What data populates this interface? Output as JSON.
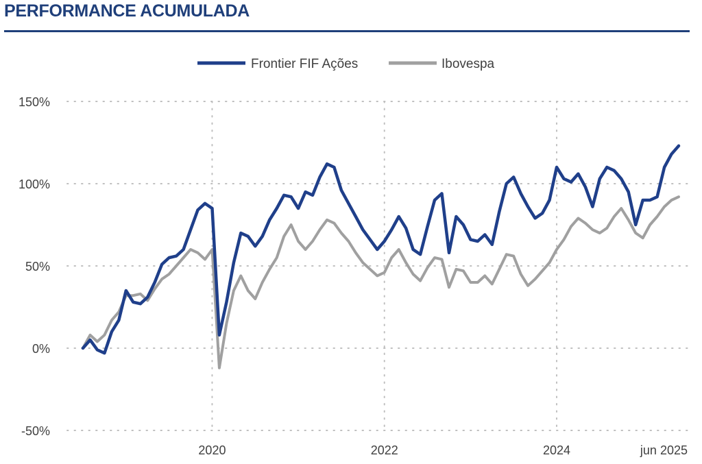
{
  "header": {
    "title": "PERFORMANCE ACUMULADA"
  },
  "colors": {
    "title": "#1f3f7a",
    "frontier": "#1f3f8a",
    "ibovespa": "#a0a0a0",
    "grid": "#bfbfbf"
  },
  "chart_data": {
    "type": "line",
    "title": "",
    "xlabel": "",
    "ylabel": "",
    "x_range": [
      "2018-07",
      "2025-06"
    ],
    "ylim": [
      -50,
      150
    ],
    "y_ticks": [
      150,
      100,
      50,
      0,
      -50
    ],
    "y_tick_labels": [
      "150%",
      "100%",
      "50%",
      "0%",
      "-50%"
    ],
    "x_ticks": [
      "2020-01",
      "2022-01",
      "2024-01",
      "2025-06"
    ],
    "x_tick_labels": [
      "2020",
      "2022",
      "2024",
      "jun 2025"
    ],
    "grid": "dotted",
    "legend_position": "top-center",
    "x": [
      "2018-07",
      "2018-08",
      "2018-09",
      "2018-10",
      "2018-11",
      "2018-12",
      "2019-01",
      "2019-02",
      "2019-03",
      "2019-04",
      "2019-05",
      "2019-06",
      "2019-07",
      "2019-08",
      "2019-09",
      "2019-10",
      "2019-11",
      "2019-12",
      "2020-01",
      "2020-02",
      "2020-03",
      "2020-04",
      "2020-05",
      "2020-06",
      "2020-07",
      "2020-08",
      "2020-09",
      "2020-10",
      "2020-11",
      "2020-12",
      "2021-01",
      "2021-02",
      "2021-03",
      "2021-04",
      "2021-05",
      "2021-06",
      "2021-07",
      "2021-08",
      "2021-09",
      "2021-10",
      "2021-11",
      "2021-12",
      "2022-01",
      "2022-02",
      "2022-03",
      "2022-04",
      "2022-05",
      "2022-06",
      "2022-07",
      "2022-08",
      "2022-09",
      "2022-10",
      "2022-11",
      "2022-12",
      "2023-01",
      "2023-02",
      "2023-03",
      "2023-04",
      "2023-05",
      "2023-06",
      "2023-07",
      "2023-08",
      "2023-09",
      "2023-10",
      "2023-11",
      "2023-12",
      "2024-01",
      "2024-02",
      "2024-03",
      "2024-04",
      "2024-05",
      "2024-06",
      "2024-07",
      "2024-08",
      "2024-09",
      "2024-10",
      "2024-11",
      "2024-12",
      "2025-01",
      "2025-02",
      "2025-03",
      "2025-04",
      "2025-05",
      "2025-06"
    ],
    "series": [
      {
        "name": "Frontier FIF Ações",
        "color": "#1f3f8a",
        "values": [
          0,
          5,
          -1,
          -3,
          10,
          17,
          35,
          28,
          27,
          31,
          40,
          51,
          55,
          56,
          60,
          72,
          84,
          88,
          85,
          8,
          28,
          52,
          70,
          68,
          62,
          68,
          78,
          85,
          93,
          92,
          85,
          95,
          93,
          104,
          112,
          110,
          96,
          88,
          80,
          72,
          66,
          60,
          65,
          72,
          80,
          73,
          60,
          57,
          74,
          90,
          94,
          58,
          80,
          75,
          66,
          65,
          69,
          63,
          83,
          100,
          104,
          94,
          86,
          79,
          82,
          90,
          110,
          103,
          101,
          106,
          98,
          86,
          103,
          110,
          108,
          103,
          95,
          75,
          90,
          90,
          92,
          110,
          118,
          123
        ]
      },
      {
        "name": "Ibovespa",
        "color": "#a0a0a0",
        "values": [
          0,
          8,
          4,
          8,
          17,
          22,
          32,
          32,
          33,
          29,
          36,
          42,
          45,
          50,
          55,
          60,
          58,
          54,
          60,
          -12,
          15,
          35,
          44,
          35,
          30,
          40,
          48,
          55,
          68,
          75,
          65,
          60,
          65,
          72,
          78,
          76,
          70,
          65,
          58,
          52,
          48,
          44,
          46,
          55,
          60,
          52,
          45,
          41,
          49,
          55,
          54,
          37,
          48,
          47,
          40,
          40,
          44,
          39,
          48,
          57,
          56,
          45,
          38,
          42,
          47,
          52,
          60,
          66,
          74,
          79,
          76,
          72,
          70,
          73,
          80,
          85,
          78,
          70,
          67,
          75,
          80,
          86,
          90,
          92
        ]
      }
    ]
  },
  "legend": {
    "items": [
      {
        "label": "Frontier FIF Ações",
        "color": "#1f3f8a"
      },
      {
        "label": "Ibovespa",
        "color": "#a0a0a0"
      }
    ]
  }
}
